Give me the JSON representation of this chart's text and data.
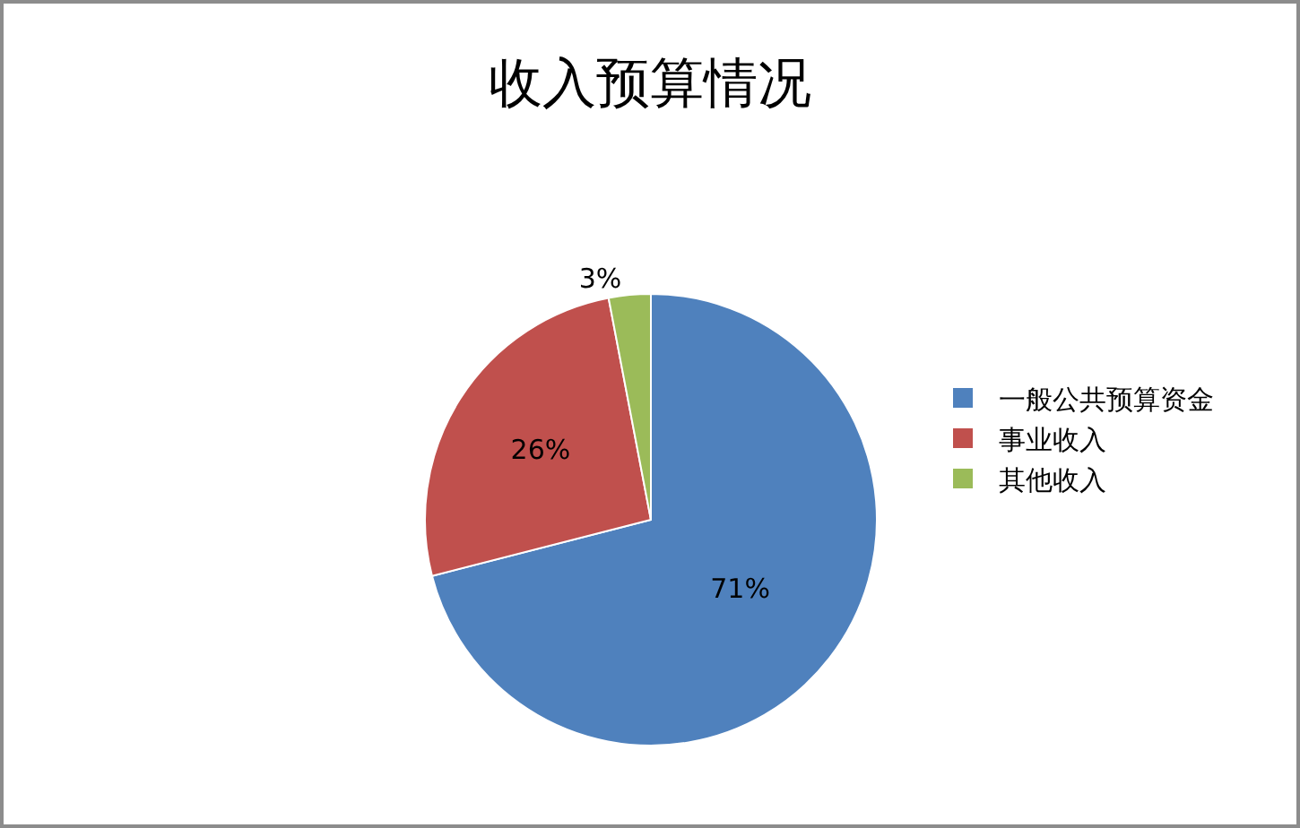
{
  "chart_data": {
    "type": "pie",
    "title": "收入预算情况",
    "categories": [
      "一般公共预算资金",
      "事业收入",
      "其他收入"
    ],
    "values": [
      71,
      26,
      3
    ],
    "colors": [
      "#4f81bd",
      "#c0504d",
      "#9bbb59"
    ],
    "value_labels": [
      "71%",
      "26%",
      "3%"
    ],
    "legend": "right"
  }
}
